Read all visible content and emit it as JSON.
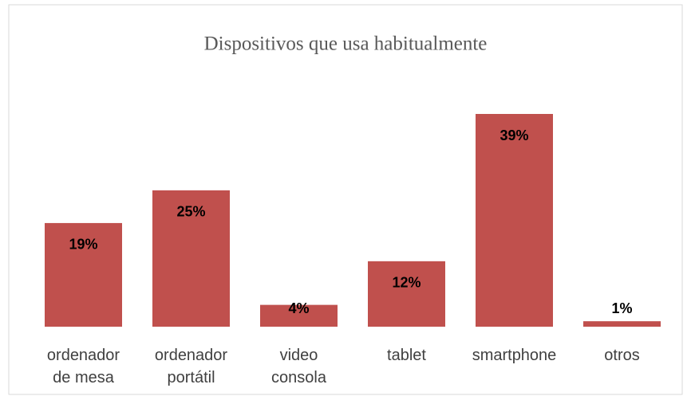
{
  "chart_data": {
    "type": "bar",
    "title": "Dispositivos que usa habitualmente",
    "categories": [
      "ordenador de mesa",
      "ordenador portátil",
      "video consola",
      "tablet",
      "smartphone",
      "otros"
    ],
    "values": [
      19,
      25,
      4,
      12,
      39,
      1
    ],
    "value_labels": [
      "19%",
      "25%",
      "4%",
      "12%",
      "39%",
      "1%"
    ],
    "color": "#c0504d"
  }
}
